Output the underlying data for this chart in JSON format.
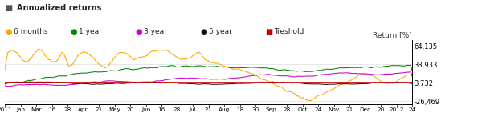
{
  "title": "Annualized returns",
  "ylabel": "Return [%]",
  "yticks": [
    64135,
    33933,
    3732,
    -26469
  ],
  "ytick_labels": [
    "64,135",
    "33,933",
    "3,732",
    "-26,469"
  ],
  "ylim": [
    -32000,
    74000
  ],
  "legend_entries": [
    "6 months",
    "1 year",
    "3 year",
    "5 year",
    "Treshold"
  ],
  "legend_colors": [
    "#FFA500",
    "#008800",
    "#CC00CC",
    "#111111",
    "#CC0000"
  ],
  "line_colors": {
    "6months": "#FFA500",
    "1year": "#008800",
    "3year": "#CC00CC",
    "5year": "#111111",
    "threshold": "#CC0000"
  },
  "xtick_labels": [
    "2011",
    "Jan",
    "Mar",
    "16",
    "28",
    "Apr",
    "21",
    "May",
    "20",
    "Jun",
    "16",
    "28",
    "Jul",
    "21",
    "Aug",
    "18",
    "30",
    "Sep",
    "28",
    "Oct",
    "24",
    "Nov",
    "21",
    "Dec",
    "20",
    "2012",
    "24"
  ],
  "background_color": "#FFFFFF",
  "grid_color": "#DDDDDD",
  "threshold_value": 3732,
  "title_square_color": "#555555"
}
